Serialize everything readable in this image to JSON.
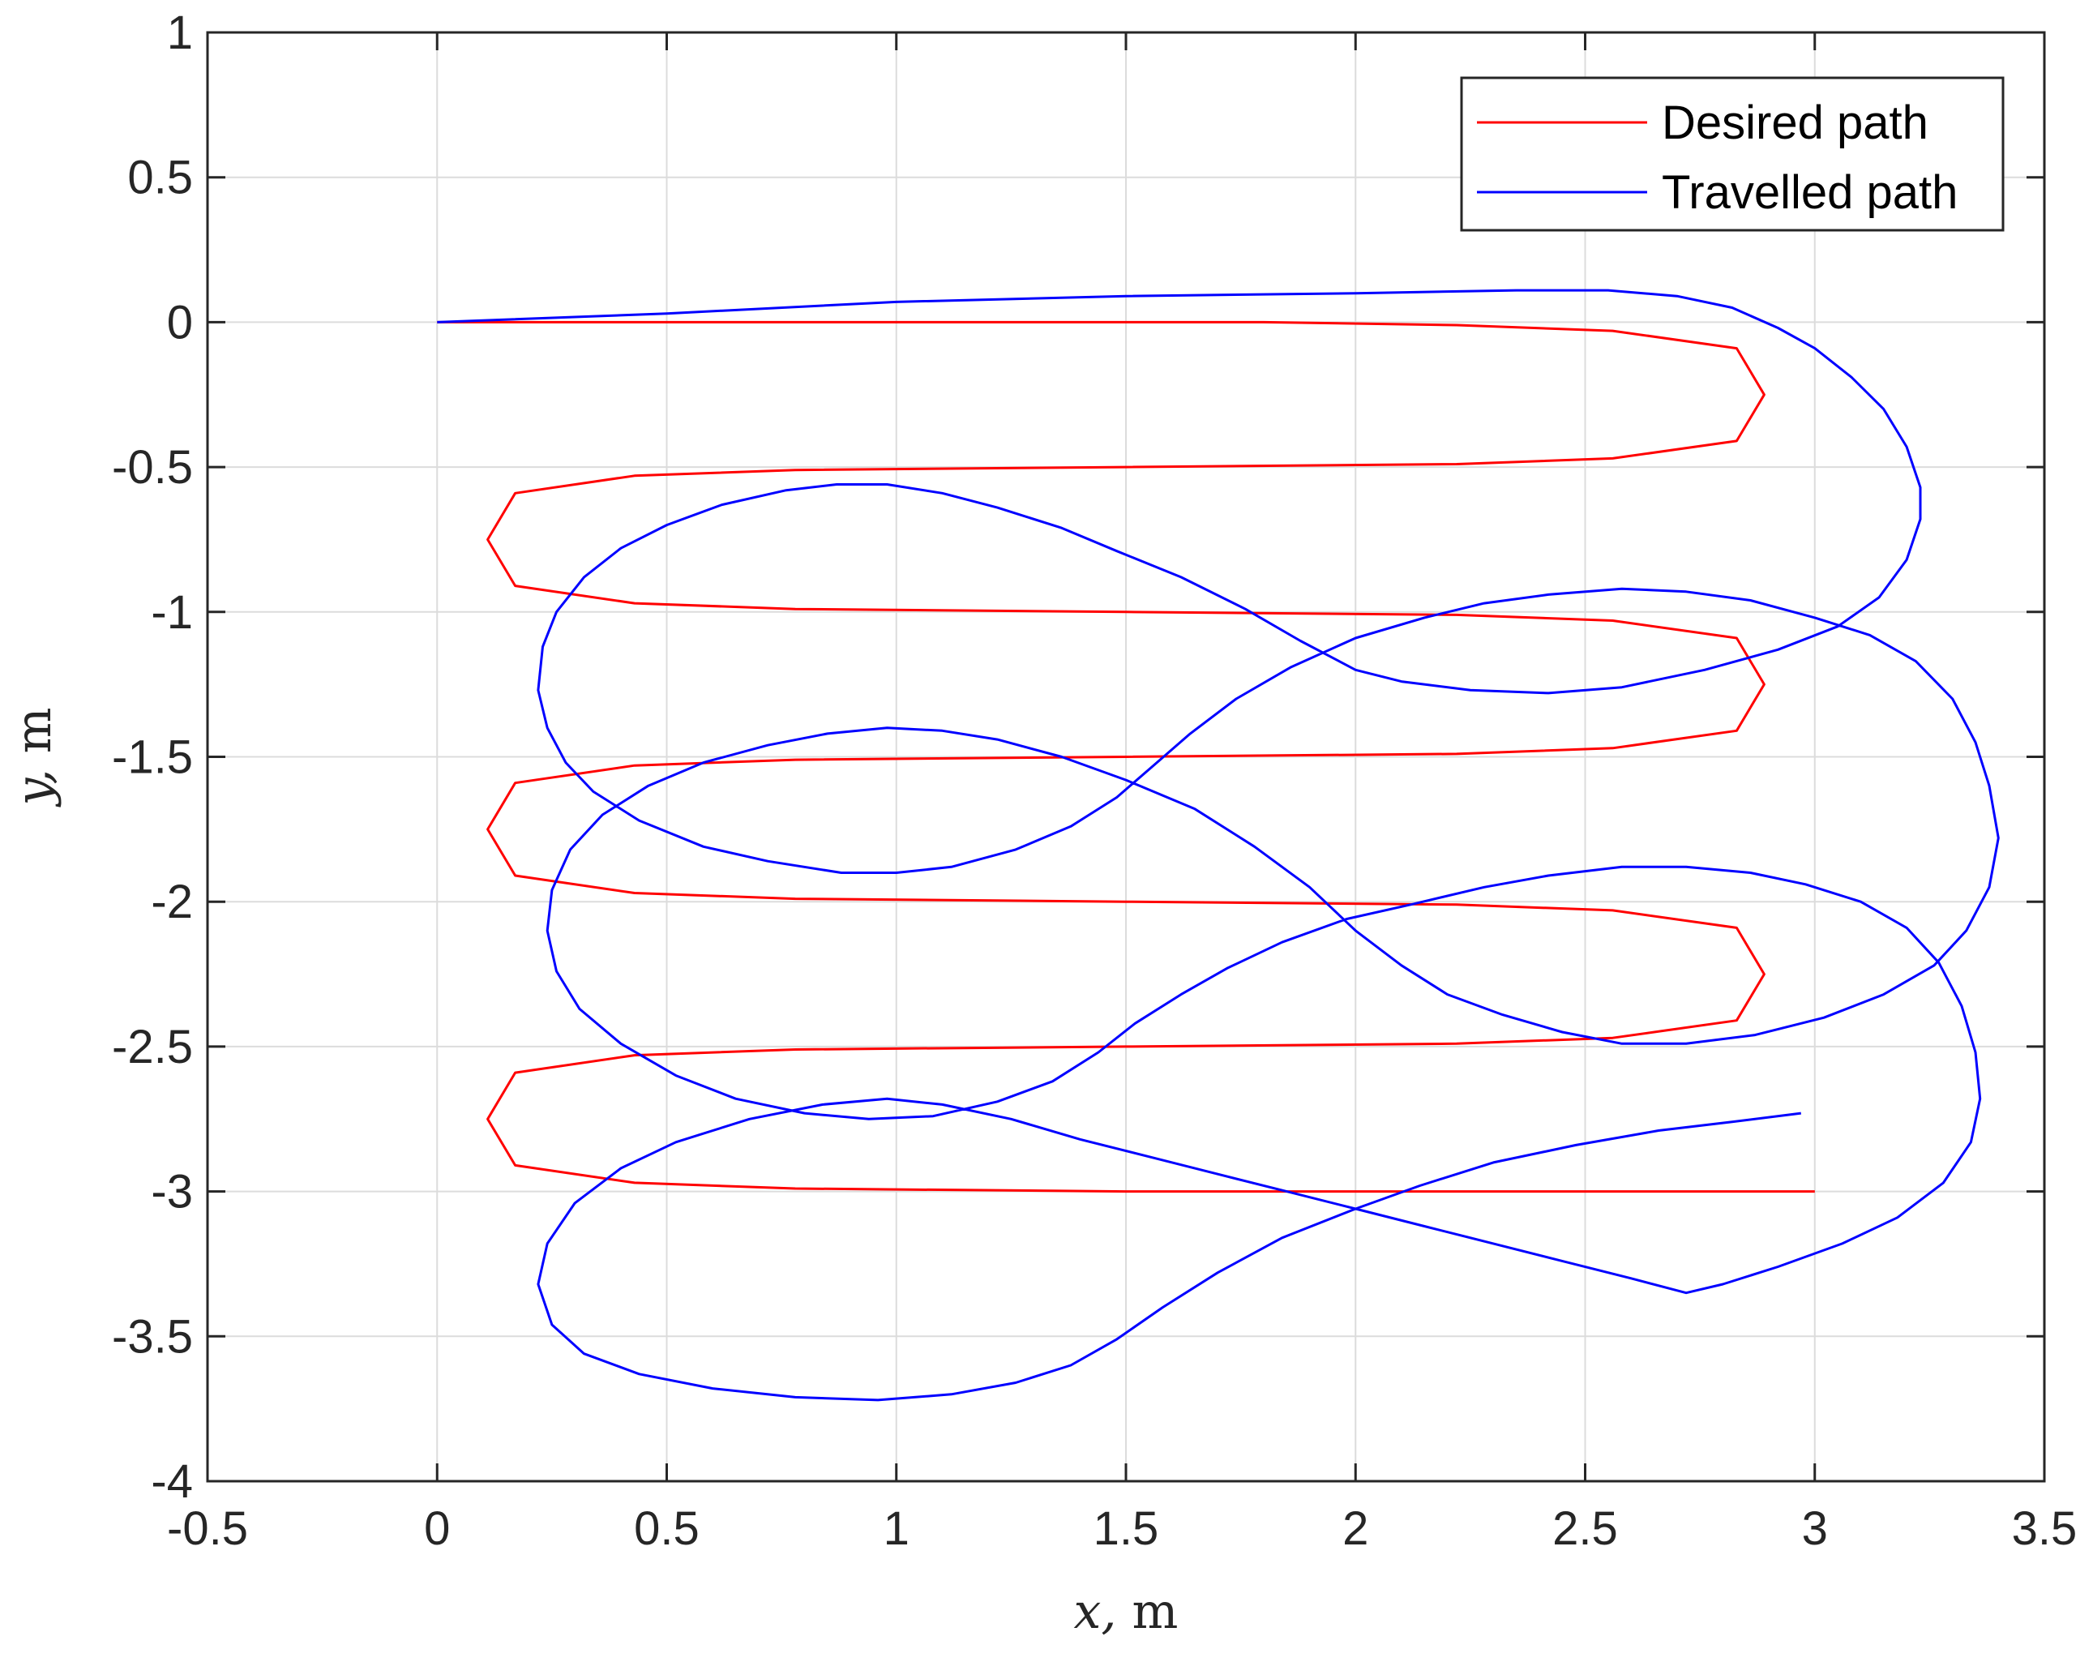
{
  "chart_data": {
    "type": "line",
    "title": "",
    "xlabel": "x, m",
    "ylabel": "y, m",
    "xlim": [
      -0.5,
      3.5
    ],
    "ylim": [
      -4,
      1
    ],
    "xticks": [
      -0.5,
      0,
      0.5,
      1,
      1.5,
      2,
      2.5,
      3,
      3.5
    ],
    "xtick_labels": [
      "-0.5",
      "0",
      "0.5",
      "1",
      "1.5",
      "2",
      "2.5",
      "3",
      "3.5"
    ],
    "yticks": [
      1,
      0.5,
      0,
      -0.5,
      -1,
      -1.5,
      -2,
      -2.5,
      -3,
      -3.5,
      -4
    ],
    "ytick_labels": [
      "1",
      "0.5",
      "0",
      "-0.5",
      "-1",
      "-1.5",
      "-2",
      "-2.5",
      "-3",
      "-3.5",
      "-4"
    ],
    "grid": true,
    "legend_position": "top-right",
    "series": [
      {
        "name": "Desired path",
        "color": "#ff0000",
        "points": [
          [
            0,
            0
          ],
          [
            1.0,
            0
          ],
          [
            1.8,
            0
          ],
          [
            2.22,
            -0.01
          ],
          [
            2.56,
            -0.03
          ],
          [
            2.83,
            -0.09
          ],
          [
            2.89,
            -0.25
          ],
          [
            2.83,
            -0.41
          ],
          [
            2.56,
            -0.47
          ],
          [
            2.22,
            -0.49
          ],
          [
            1.5,
            -0.5
          ],
          [
            0.78,
            -0.51
          ],
          [
            0.43,
            -0.53
          ],
          [
            0.17,
            -0.59
          ],
          [
            0.11,
            -0.75
          ],
          [
            0.17,
            -0.91
          ],
          [
            0.43,
            -0.97
          ],
          [
            0.78,
            -0.99
          ],
          [
            1.5,
            -1.0
          ],
          [
            2.22,
            -1.01
          ],
          [
            2.56,
            -1.03
          ],
          [
            2.83,
            -1.09
          ],
          [
            2.89,
            -1.25
          ],
          [
            2.83,
            -1.41
          ],
          [
            2.56,
            -1.47
          ],
          [
            2.22,
            -1.49
          ],
          [
            1.5,
            -1.5
          ],
          [
            0.78,
            -1.51
          ],
          [
            0.43,
            -1.53
          ],
          [
            0.17,
            -1.59
          ],
          [
            0.11,
            -1.75
          ],
          [
            0.17,
            -1.91
          ],
          [
            0.43,
            -1.97
          ],
          [
            0.78,
            -1.99
          ],
          [
            1.5,
            -2.0
          ],
          [
            2.22,
            -2.01
          ],
          [
            2.56,
            -2.03
          ],
          [
            2.83,
            -2.09
          ],
          [
            2.89,
            -2.25
          ],
          [
            2.83,
            -2.41
          ],
          [
            2.56,
            -2.47
          ],
          [
            2.22,
            -2.49
          ],
          [
            1.5,
            -2.5
          ],
          [
            0.78,
            -2.51
          ],
          [
            0.43,
            -2.53
          ],
          [
            0.17,
            -2.59
          ],
          [
            0.11,
            -2.75
          ],
          [
            0.17,
            -2.91
          ],
          [
            0.43,
            -2.97
          ],
          [
            0.78,
            -2.99
          ],
          [
            1.5,
            -3.0
          ],
          [
            2.22,
            -3.0
          ],
          [
            3.0,
            -3.0
          ]
        ]
      },
      {
        "name": "Travelled path",
        "color": "#0000ff",
        "points": [
          [
            0,
            0
          ],
          [
            0.5,
            0.03
          ],
          [
            1.0,
            0.07
          ],
          [
            1.5,
            0.09
          ],
          [
            2.0,
            0.1
          ],
          [
            2.35,
            0.11
          ],
          [
            2.55,
            0.11
          ],
          [
            2.7,
            0.09
          ],
          [
            2.82,
            0.05
          ],
          [
            2.92,
            -0.02
          ],
          [
            3.0,
            -0.09
          ],
          [
            3.08,
            -0.19
          ],
          [
            3.15,
            -0.3
          ],
          [
            3.2,
            -0.43
          ],
          [
            3.23,
            -0.57
          ],
          [
            3.23,
            -0.68
          ],
          [
            3.2,
            -0.82
          ],
          [
            3.14,
            -0.95
          ],
          [
            3.05,
            -1.05
          ],
          [
            2.92,
            -1.13
          ],
          [
            2.76,
            -1.2
          ],
          [
            2.58,
            -1.26
          ],
          [
            2.42,
            -1.28
          ],
          [
            2.25,
            -1.27
          ],
          [
            2.1,
            -1.24
          ],
          [
            2.0,
            -1.2
          ],
          [
            1.88,
            -1.1
          ],
          [
            1.76,
            -0.99
          ],
          [
            1.62,
            -0.88
          ],
          [
            1.48,
            -0.79
          ],
          [
            1.36,
            -0.71
          ],
          [
            1.22,
            -0.64
          ],
          [
            1.1,
            -0.59
          ],
          [
            0.98,
            -0.56
          ],
          [
            0.87,
            -0.56
          ],
          [
            0.76,
            -0.58
          ],
          [
            0.62,
            -0.63
          ],
          [
            0.5,
            -0.7
          ],
          [
            0.4,
            -0.78
          ],
          [
            0.32,
            -0.88
          ],
          [
            0.26,
            -1.0
          ],
          [
            0.23,
            -1.12
          ],
          [
            0.22,
            -1.27
          ],
          [
            0.24,
            -1.4
          ],
          [
            0.28,
            -1.52
          ],
          [
            0.34,
            -1.62
          ],
          [
            0.44,
            -1.72
          ],
          [
            0.58,
            -1.81
          ],
          [
            0.72,
            -1.86
          ],
          [
            0.88,
            -1.9
          ],
          [
            1.0,
            -1.9
          ],
          [
            1.12,
            -1.88
          ],
          [
            1.26,
            -1.82
          ],
          [
            1.38,
            -1.74
          ],
          [
            1.48,
            -1.64
          ],
          [
            1.56,
            -1.53
          ],
          [
            1.64,
            -1.42
          ],
          [
            1.74,
            -1.3
          ],
          [
            1.86,
            -1.19
          ],
          [
            2.0,
            -1.09
          ],
          [
            2.15,
            -1.02
          ],
          [
            2.28,
            -0.97
          ],
          [
            2.42,
            -0.94
          ],
          [
            2.58,
            -0.92
          ],
          [
            2.72,
            -0.93
          ],
          [
            2.86,
            -0.96
          ],
          [
            3.0,
            -1.02
          ],
          [
            3.12,
            -1.08
          ],
          [
            3.22,
            -1.17
          ],
          [
            3.3,
            -1.3
          ],
          [
            3.35,
            -1.45
          ],
          [
            3.38,
            -1.6
          ],
          [
            3.4,
            -1.78
          ],
          [
            3.38,
            -1.95
          ],
          [
            3.33,
            -2.1
          ],
          [
            3.26,
            -2.22
          ],
          [
            3.15,
            -2.32
          ],
          [
            3.02,
            -2.4
          ],
          [
            2.87,
            -2.46
          ],
          [
            2.72,
            -2.49
          ],
          [
            2.58,
            -2.49
          ],
          [
            2.45,
            -2.45
          ],
          [
            2.32,
            -2.39
          ],
          [
            2.2,
            -2.32
          ],
          [
            2.1,
            -2.22
          ],
          [
            2.0,
            -2.1
          ],
          [
            1.9,
            -1.95
          ],
          [
            1.78,
            -1.81
          ],
          [
            1.65,
            -1.68
          ],
          [
            1.5,
            -1.58
          ],
          [
            1.36,
            -1.5
          ],
          [
            1.22,
            -1.44
          ],
          [
            1.1,
            -1.41
          ],
          [
            0.98,
            -1.4
          ],
          [
            0.85,
            -1.42
          ],
          [
            0.72,
            -1.46
          ],
          [
            0.58,
            -1.52
          ],
          [
            0.46,
            -1.6
          ],
          [
            0.36,
            -1.7
          ],
          [
            0.29,
            -1.82
          ],
          [
            0.25,
            -1.96
          ],
          [
            0.24,
            -2.1
          ],
          [
            0.26,
            -2.24
          ],
          [
            0.31,
            -2.37
          ],
          [
            0.4,
            -2.49
          ],
          [
            0.52,
            -2.6
          ],
          [
            0.65,
            -2.68
          ],
          [
            0.8,
            -2.73
          ],
          [
            0.94,
            -2.75
          ],
          [
            1.08,
            -2.74
          ],
          [
            1.22,
            -2.69
          ],
          [
            1.34,
            -2.62
          ],
          [
            1.44,
            -2.52
          ],
          [
            1.52,
            -2.42
          ],
          [
            1.62,
            -2.32
          ],
          [
            1.72,
            -2.23
          ],
          [
            1.84,
            -2.14
          ],
          [
            1.98,
            -2.06
          ],
          [
            2.12,
            -2.01
          ],
          [
            2.28,
            -1.95
          ],
          [
            2.42,
            -1.91
          ],
          [
            2.58,
            -1.88
          ],
          [
            2.72,
            -1.88
          ],
          [
            2.86,
            -1.9
          ],
          [
            2.98,
            -1.94
          ],
          [
            3.1,
            -2.0
          ],
          [
            3.2,
            -2.09
          ],
          [
            3.27,
            -2.21
          ],
          [
            3.32,
            -2.36
          ],
          [
            3.35,
            -2.52
          ],
          [
            3.36,
            -2.68
          ],
          [
            3.34,
            -2.83
          ],
          [
            3.28,
            -2.97
          ],
          [
            3.18,
            -3.09
          ],
          [
            3.06,
            -3.18
          ],
          [
            2.92,
            -3.26
          ],
          [
            2.8,
            -3.32
          ],
          [
            2.72,
            -3.35
          ],
          [
            2.6,
            -3.3
          ],
          [
            2.45,
            -3.24
          ],
          [
            2.3,
            -3.18
          ],
          [
            2.15,
            -3.12
          ],
          [
            2.0,
            -3.06
          ],
          [
            1.85,
            -3.0
          ],
          [
            1.7,
            -2.94
          ],
          [
            1.55,
            -2.88
          ],
          [
            1.4,
            -2.82
          ],
          [
            1.25,
            -2.75
          ],
          [
            1.1,
            -2.7
          ],
          [
            0.98,
            -2.68
          ],
          [
            0.84,
            -2.7
          ],
          [
            0.68,
            -2.75
          ],
          [
            0.52,
            -2.83
          ],
          [
            0.4,
            -2.92
          ],
          [
            0.3,
            -3.04
          ],
          [
            0.24,
            -3.18
          ],
          [
            0.22,
            -3.32
          ],
          [
            0.25,
            -3.46
          ],
          [
            0.32,
            -3.56
          ],
          [
            0.44,
            -3.63
          ],
          [
            0.6,
            -3.68
          ],
          [
            0.78,
            -3.71
          ],
          [
            0.96,
            -3.72
          ],
          [
            1.12,
            -3.7
          ],
          [
            1.26,
            -3.66
          ],
          [
            1.38,
            -3.6
          ],
          [
            1.48,
            -3.51
          ],
          [
            1.58,
            -3.4
          ],
          [
            1.7,
            -3.28
          ],
          [
            1.84,
            -3.16
          ],
          [
            2.0,
            -3.06
          ],
          [
            2.14,
            -2.98
          ],
          [
            2.3,
            -2.9
          ],
          [
            2.48,
            -2.84
          ],
          [
            2.66,
            -2.79
          ],
          [
            2.82,
            -2.76
          ],
          [
            2.97,
            -2.73
          ]
        ]
      }
    ]
  }
}
